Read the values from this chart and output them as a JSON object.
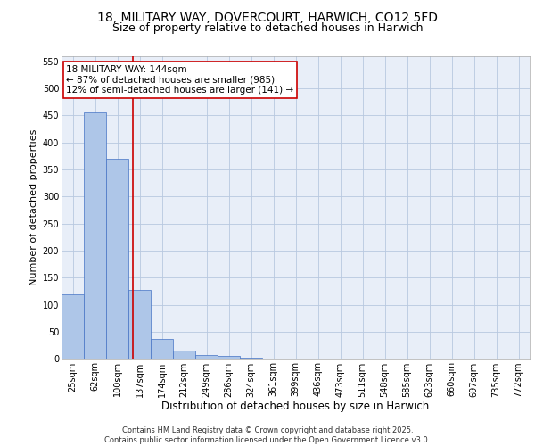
{
  "title_line1": "18, MILITARY WAY, DOVERCOURT, HARWICH, CO12 5FD",
  "title_line2": "Size of property relative to detached houses in Harwich",
  "xlabel": "Distribution of detached houses by size in Harwich",
  "ylabel": "Number of detached properties",
  "categories": [
    "25sqm",
    "62sqm",
    "100sqm",
    "137sqm",
    "174sqm",
    "212sqm",
    "249sqm",
    "286sqm",
    "324sqm",
    "361sqm",
    "399sqm",
    "436sqm",
    "473sqm",
    "511sqm",
    "548sqm",
    "585sqm",
    "623sqm",
    "660sqm",
    "697sqm",
    "735sqm",
    "772sqm"
  ],
  "values": [
    120,
    455,
    370,
    128,
    37,
    15,
    8,
    5,
    3,
    0,
    1,
    0,
    0,
    0,
    0,
    0,
    0,
    0,
    0,
    0,
    1
  ],
  "bar_color": "#aec6e8",
  "bar_edge_color": "#4472c4",
  "vline_color": "#cc0000",
  "vline_pos": 2.69,
  "annotation_text": "18 MILITARY WAY: 144sqm\n← 87% of detached houses are smaller (985)\n12% of semi-detached houses are larger (141) →",
  "annotation_box_color": "#ffffff",
  "annotation_box_edge_color": "#cc0000",
  "ylim": [
    0,
    560
  ],
  "yticks": [
    0,
    50,
    100,
    150,
    200,
    250,
    300,
    350,
    400,
    450,
    500,
    550
  ],
  "bg_color": "#e8eef8",
  "footer_text": "Contains HM Land Registry data © Crown copyright and database right 2025.\nContains public sector information licensed under the Open Government Licence v3.0.",
  "title_fontsize": 10,
  "subtitle_fontsize": 9,
  "tick_fontsize": 7,
  "xlabel_fontsize": 8.5,
  "ylabel_fontsize": 8,
  "footer_fontsize": 6,
  "annotation_fontsize": 7.5
}
